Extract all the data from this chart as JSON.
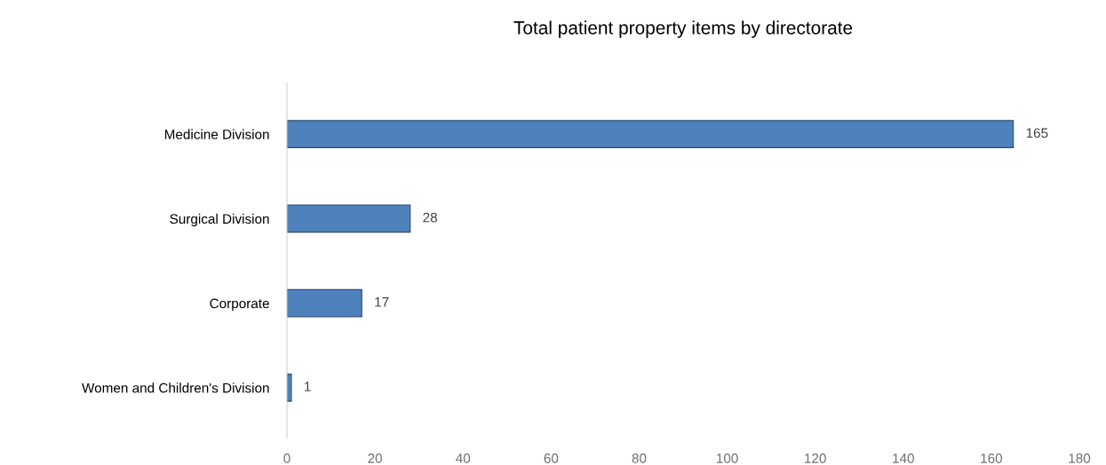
{
  "chart_data": {
    "type": "bar",
    "orientation": "horizontal",
    "title": "Total patient property items by directorate",
    "categories": [
      "Medicine Division",
      "Surgical Division",
      "Corporate",
      "Women and Children's Division"
    ],
    "values": [
      165,
      28,
      17,
      1
    ],
    "color": "#4f81bd",
    "xlim": [
      0,
      180
    ],
    "xticks": [
      0,
      20,
      40,
      60,
      80,
      100,
      120,
      140,
      160,
      180
    ],
    "data_labels": true,
    "grid": false,
    "legend": false
  }
}
